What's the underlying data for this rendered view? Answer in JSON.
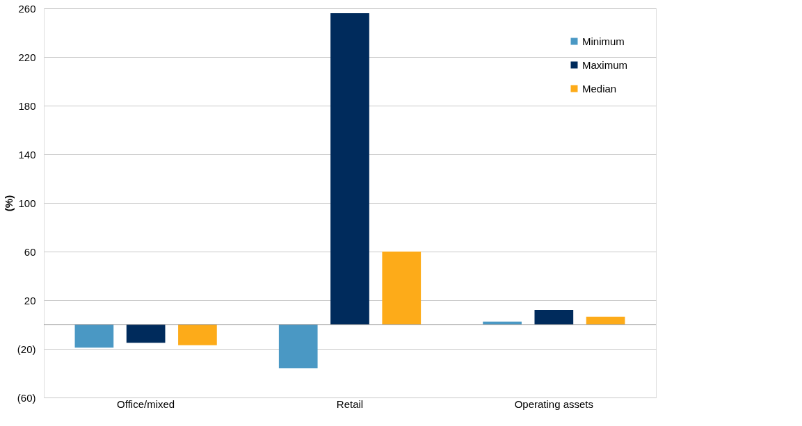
{
  "chart_data": {
    "type": "bar",
    "ylabel": "(%)",
    "categories": [
      "Office/mixed",
      "Retail",
      "Operating assets"
    ],
    "series": [
      {
        "name": "Minimum",
        "color": "#4a98c4",
        "values": [
          -19,
          -36,
          2.5
        ]
      },
      {
        "name": "Maximum",
        "color": "#002b5c",
        "values": [
          -15,
          256,
          12
        ]
      },
      {
        "name": "Median",
        "color": "#fdab19",
        "values": [
          -17,
          60,
          6.5
        ]
      }
    ],
    "ylim": [
      -60,
      260
    ],
    "yticks": [
      {
        "value": -60,
        "label": "(60)"
      },
      {
        "value": -20,
        "label": "(20)"
      },
      20,
      60,
      100,
      140,
      180,
      220,
      260
    ],
    "ref_lines": [
      {
        "axis": "y",
        "value": 0,
        "color": "#888888"
      }
    ],
    "grid": "y",
    "legend": "top right"
  }
}
